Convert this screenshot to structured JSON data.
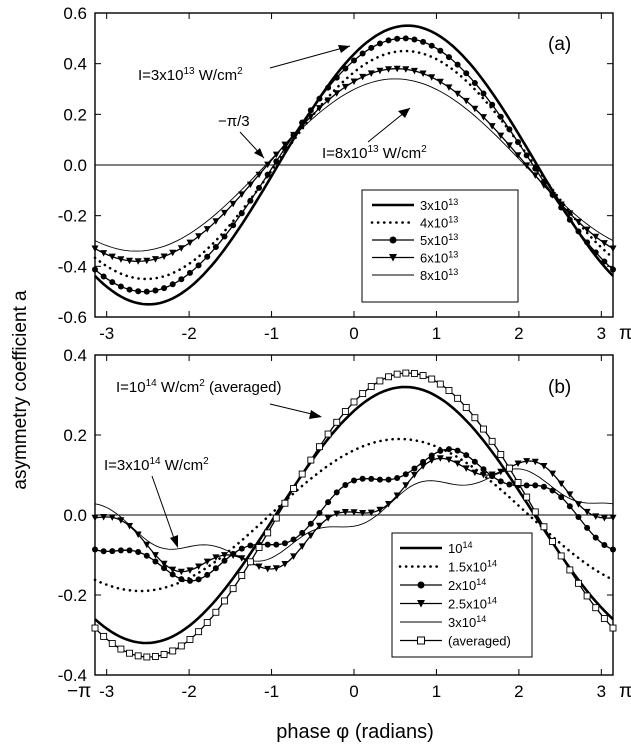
{
  "ylabel": "asymmetry  coefficient  a",
  "xlabel": "phase φ (radians)",
  "chart_data": [
    {
      "panel_label": "(a)",
      "type": "line",
      "x_domain": [
        -3.14159,
        3.14159
      ],
      "ylim": [
        -0.6,
        0.6
      ],
      "y_ticks": [
        "0.6",
        "0.4",
        "0.2",
        "0.0",
        "-0.2",
        "-0.4",
        "-0.6"
      ],
      "y_tick_values": [
        0.6,
        0.4,
        0.2,
        0.0,
        -0.2,
        -0.4,
        -0.6
      ],
      "x_ticks": [
        "-3",
        "-2",
        "-1",
        "0",
        "1",
        "2",
        "3"
      ],
      "x_tick_values": [
        -3,
        -2,
        -1,
        0,
        1,
        2,
        3
      ],
      "x_end_label": "π",
      "annotations": [
        {
          "pre": "I=3x10",
          "sup": "13",
          "post": " W/cm",
          "sup2": "2"
        },
        {
          "pre": "−π/3",
          "sup": "",
          "post": "",
          "sup2": ""
        },
        {
          "pre": "I=8x10",
          "sup": "13",
          "post": " W/cm",
          "sup2": "2"
        }
      ],
      "series": [
        {
          "name_base": "3x10",
          "name_sup": "13",
          "style": "thick",
          "amp": 0.55,
          "phase": 0.65,
          "ripple": 0
        },
        {
          "name_base": "4x10",
          "name_sup": "13",
          "style": "dotted",
          "amp": 0.45,
          "phase": 0.62,
          "ripple": 0
        },
        {
          "name_base": "5x10",
          "name_sup": "13",
          "style": "circle",
          "amp": 0.5,
          "phase": 0.6,
          "ripple": 0
        },
        {
          "name_base": "6x10",
          "name_sup": "13",
          "style": "triangle",
          "amp": 0.38,
          "phase": 0.52,
          "ripple": 0
        },
        {
          "name_base": "8x10",
          "name_sup": "13",
          "style": "thin",
          "amp": 0.34,
          "phase": 0.5,
          "ripple": 0
        }
      ]
    },
    {
      "panel_label": "(b)",
      "type": "line",
      "x_domain": [
        -3.14159,
        3.14159
      ],
      "ylim": [
        -0.4,
        0.4
      ],
      "y_ticks": [
        "0.4",
        "0.2",
        "0.0",
        "-0.2",
        "-0.4"
      ],
      "y_tick_values": [
        0.4,
        0.2,
        0.0,
        -0.2,
        -0.4
      ],
      "x_ticks": [
        "-3",
        "-2",
        "-1",
        "0",
        "1",
        "2",
        "3"
      ],
      "x_tick_values": [
        -3,
        -2,
        -1,
        0,
        1,
        2,
        3
      ],
      "x_start_label": "−π",
      "x_end_label": "π",
      "annotations": [
        {
          "pre": "I=10",
          "sup": "14",
          "post": " W/cm",
          "sup2": "2",
          "tail": "  (averaged)"
        },
        {
          "pre": "I=3x10",
          "sup": "14",
          "post": " W/cm",
          "sup2": "2",
          "tail": ""
        }
      ],
      "series": [
        {
          "name_base": "10",
          "name_sup": "14",
          "style": "thick",
          "amp": 0.32,
          "phase": 0.62,
          "ripple": 0
        },
        {
          "name_base": "1.5x10",
          "name_sup": "14",
          "style": "dotted",
          "amp": 0.19,
          "phase": 0.55,
          "ripple": 0
        },
        {
          "name_base": "2x10",
          "name_sup": "14",
          "style": "circle",
          "amp": 0.14,
          "phase": 1.1,
          "ripple": 0.025
        },
        {
          "name_base": "2.5x10",
          "name_sup": "14",
          "style": "triangle",
          "amp": 0.13,
          "phase": 1.55,
          "ripple": 0.03
        },
        {
          "name_base": "3x10",
          "name_sup": "14",
          "style": "thin",
          "amp": 0.1,
          "phase": 1.7,
          "ripple": 0.02
        },
        {
          "name_base": "(averaged)",
          "name_sup": "",
          "style": "square",
          "amp": 0.355,
          "phase": 0.65,
          "ripple": 0
        }
      ]
    }
  ]
}
